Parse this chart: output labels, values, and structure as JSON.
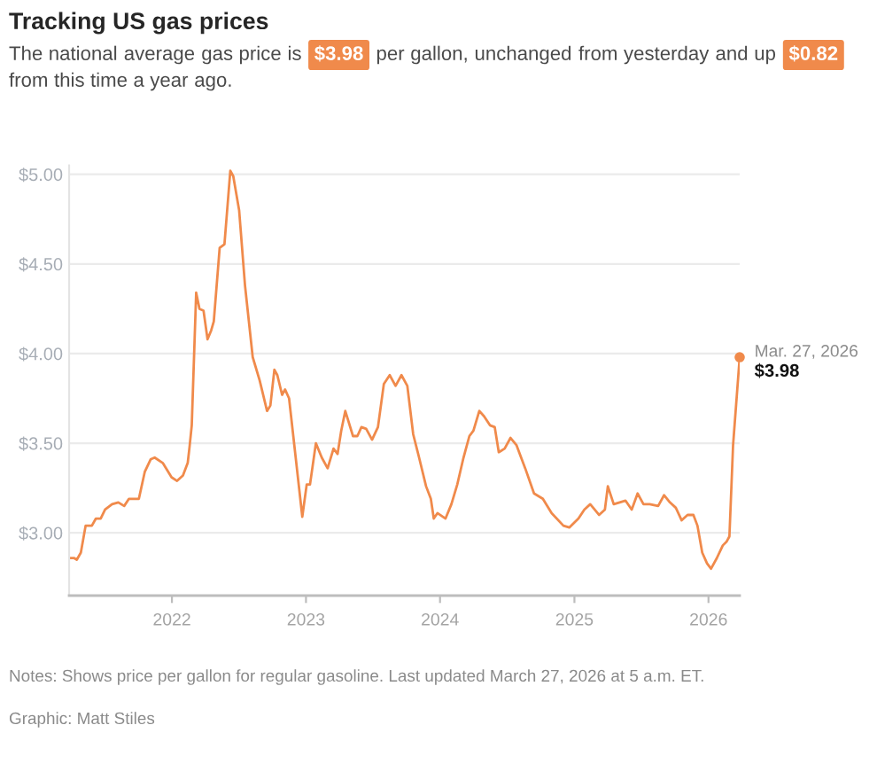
{
  "chart_data": {
    "type": "line",
    "title": "Tracking US gas prices",
    "subtitle": [
      "The national average gas price is ",
      "$3.98",
      " per gallon, unchanged from yesterday and up ",
      "$0.82",
      " from this time a year ago."
    ],
    "x": [
      "2021-03-27",
      "2021-04-09",
      "2021-04-17",
      "2021-04-28",
      "2021-05-11",
      "2021-05-28",
      "2021-06-08",
      "2021-06-21",
      "2021-07-03",
      "2021-07-22",
      "2021-08-08",
      "2021-08-24",
      "2021-09-06",
      "2021-09-17",
      "2021-10-03",
      "2021-10-19",
      "2021-11-04",
      "2021-11-15",
      "2021-12-07",
      "2021-12-31",
      "2022-01-15",
      "2022-01-31",
      "2022-02-13",
      "2022-02-18",
      "2022-02-24",
      "2022-03-08",
      "2022-03-17",
      "2022-03-28",
      "2022-04-08",
      "2022-04-18",
      "2022-04-25",
      "2022-05-11",
      "2022-05-24",
      "2022-06-09",
      "2022-06-17",
      "2022-07-03",
      "2022-07-19",
      "2022-08-09",
      "2022-08-28",
      "2022-09-17",
      "2022-09-26",
      "2022-10-07",
      "2022-10-15",
      "2022-10-28",
      "2022-11-05",
      "2022-11-16",
      "2022-12-22",
      "2023-01-03",
      "2023-01-12",
      "2023-01-28",
      "2023-02-13",
      "2023-03-01",
      "2023-03-17",
      "2023-03-28",
      "2023-04-07",
      "2023-04-18",
      "2023-05-09",
      "2023-05-21",
      "2023-06-01",
      "2023-06-14",
      "2023-06-30",
      "2023-07-16",
      "2023-08-01",
      "2023-08-17",
      "2023-09-02",
      "2023-09-18",
      "2023-10-04",
      "2023-10-20",
      "2023-11-05",
      "2023-11-24",
      "2023-12-07",
      "2023-12-15",
      "2023-12-25",
      "2024-01-16",
      "2024-02-01",
      "2024-02-17",
      "2024-03-05",
      "2024-03-21",
      "2024-04-01",
      "2024-04-17",
      "2024-04-30",
      "2024-05-16",
      "2024-05-29",
      "2024-06-09",
      "2024-06-25",
      "2024-07-11",
      "2024-07-27",
      "2024-08-20",
      "2024-09-13",
      "2024-10-07",
      "2024-10-31",
      "2024-12-02",
      "2024-12-18",
      "2025-01-12",
      "2025-01-28",
      "2025-02-13",
      "2025-03-09",
      "2025-03-25",
      "2025-04-02",
      "2025-04-18",
      "2025-05-04",
      "2025-05-20",
      "2025-06-06",
      "2025-06-22",
      "2025-07-08",
      "2025-07-25",
      "2025-08-17",
      "2025-09-02",
      "2025-09-18",
      "2025-10-04",
      "2025-10-20",
      "2025-11-05",
      "2025-11-21",
      "2025-12-02",
      "2025-12-15",
      "2025-12-28",
      "2026-01-08",
      "2026-01-24",
      "2026-02-09",
      "2026-02-19",
      "2026-02-27",
      "2026-03-09",
      "2026-03-27"
    ],
    "values": [
      2.86,
      2.86,
      2.85,
      2.89,
      3.04,
      3.04,
      3.08,
      3.08,
      3.13,
      3.16,
      3.17,
      3.15,
      3.19,
      3.19,
      3.19,
      3.34,
      3.41,
      3.42,
      3.39,
      3.31,
      3.29,
      3.32,
      3.39,
      3.48,
      3.6,
      4.34,
      4.25,
      4.24,
      4.08,
      4.13,
      4.18,
      4.59,
      4.61,
      5.02,
      4.99,
      4.8,
      4.38,
      3.98,
      3.85,
      3.68,
      3.71,
      3.91,
      3.88,
      3.77,
      3.8,
      3.75,
      3.09,
      3.27,
      3.27,
      3.5,
      3.42,
      3.36,
      3.47,
      3.44,
      3.57,
      3.68,
      3.54,
      3.54,
      3.59,
      3.58,
      3.52,
      3.59,
      3.83,
      3.88,
      3.82,
      3.88,
      3.82,
      3.55,
      3.42,
      3.26,
      3.19,
      3.08,
      3.11,
      3.08,
      3.16,
      3.27,
      3.42,
      3.54,
      3.57,
      3.68,
      3.65,
      3.6,
      3.59,
      3.45,
      3.47,
      3.53,
      3.49,
      3.36,
      3.22,
      3.19,
      3.11,
      3.04,
      3.03,
      3.08,
      3.13,
      3.16,
      3.1,
      3.13,
      3.26,
      3.16,
      3.17,
      3.18,
      3.13,
      3.22,
      3.16,
      3.16,
      3.15,
      3.21,
      3.17,
      3.14,
      3.07,
      3.1,
      3.1,
      3.04,
      2.89,
      2.83,
      2.8,
      2.86,
      2.93,
      2.95,
      2.98,
      3.49,
      3.98
    ],
    "color": "#f08a4b",
    "xlim": [
      "2021-03-27",
      "2026-03-27"
    ],
    "xticks": [
      "2022",
      "2023",
      "2024",
      "2025",
      "2026"
    ],
    "ylim": [
      2.65,
      5.05
    ],
    "yticks": [
      {
        "value": 3.0,
        "label": "$3.00"
      },
      {
        "value": 3.5,
        "label": "$3.50"
      },
      {
        "value": 4.0,
        "label": "$4.00"
      },
      {
        "value": 4.5,
        "label": "$4.50"
      },
      {
        "value": 5.0,
        "label": "$5.00"
      }
    ],
    "grid": "y",
    "annotations": [
      {
        "text": "Mar. 27, 2026",
        "x": "2026-03-27",
        "y": 3.98
      },
      {
        "text": "$3.98",
        "x": "2026-03-27",
        "y": 3.98
      },
      "Notes: Shows price per gallon for regular gasoline. Last updated March 27, 2026 at 5 a.m. ET.",
      "Graphic: Matt Stiles"
    ]
  }
}
